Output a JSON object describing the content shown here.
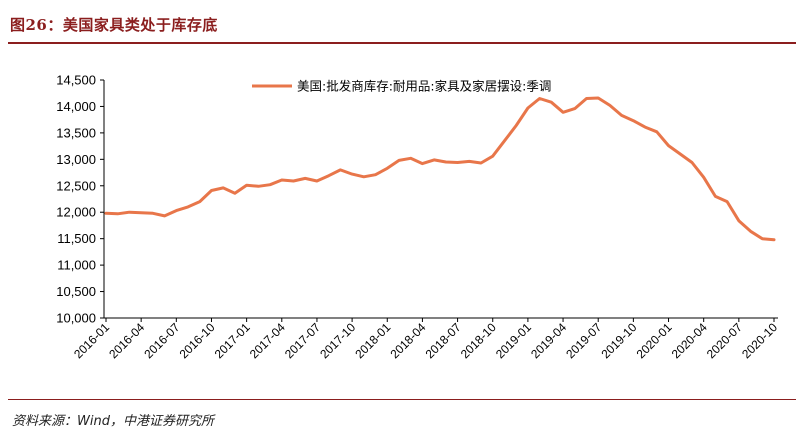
{
  "figure": {
    "title": "图26：美国家具类处于库存底",
    "source": "资料来源：Wind，中港证券研究所"
  },
  "colors": {
    "accent": "#8B1E1E",
    "series": "#E8764A",
    "axis": "#000000"
  },
  "chart_data": {
    "type": "line",
    "title": "",
    "xlabel": "",
    "ylabel": "",
    "ylim": [
      10000,
      14500
    ],
    "yticks": [
      "10,000",
      "10,500",
      "11,000",
      "11,500",
      "12,000",
      "12,500",
      "13,000",
      "13,500",
      "14,000",
      "14,500"
    ],
    "ytick_values": [
      10000,
      10500,
      11000,
      11500,
      12000,
      12500,
      13000,
      13500,
      14000,
      14500
    ],
    "xtick_labels": [
      "2016-01",
      "2016-04",
      "2016-07",
      "2016-10",
      "2017-01",
      "2017-04",
      "2017-07",
      "2017-10",
      "2018-01",
      "2018-04",
      "2018-07",
      "2018-10",
      "2019-01",
      "2019-04",
      "2019-07",
      "2019-10",
      "2020-01",
      "2020-04",
      "2020-07",
      "2020-10"
    ],
    "grid": false,
    "legend_position": "top-center",
    "x": [
      "2016-01",
      "2016-02",
      "2016-03",
      "2016-04",
      "2016-05",
      "2016-06",
      "2016-07",
      "2016-08",
      "2016-09",
      "2016-10",
      "2016-11",
      "2016-12",
      "2017-01",
      "2017-02",
      "2017-03",
      "2017-04",
      "2017-05",
      "2017-06",
      "2017-07",
      "2017-08",
      "2017-09",
      "2017-10",
      "2017-11",
      "2017-12",
      "2018-01",
      "2018-02",
      "2018-03",
      "2018-04",
      "2018-05",
      "2018-06",
      "2018-07",
      "2018-08",
      "2018-09",
      "2018-10",
      "2018-11",
      "2018-12",
      "2019-01",
      "2019-02",
      "2019-03",
      "2019-04",
      "2019-05",
      "2019-06",
      "2019-07",
      "2019-08",
      "2019-09",
      "2019-10",
      "2019-11",
      "2019-12",
      "2020-01",
      "2020-02",
      "2020-03",
      "2020-04",
      "2020-05",
      "2020-06",
      "2020-07",
      "2020-08",
      "2020-09",
      "2020-10"
    ],
    "series": [
      {
        "name": "美国:批发商库存:耐用品:家具及家居摆设:季调",
        "values": [
          11980,
          11970,
          12000,
          11990,
          11980,
          11930,
          12030,
          12100,
          12200,
          12410,
          12460,
          12360,
          12510,
          12490,
          12520,
          12610,
          12590,
          12640,
          12590,
          12690,
          12800,
          12720,
          12670,
          12710,
          12830,
          12980,
          13020,
          12920,
          12990,
          12950,
          12940,
          12960,
          12930,
          13060,
          13350,
          13640,
          13970,
          14150,
          14080,
          13890,
          13960,
          14150,
          14160,
          14020,
          13830,
          13730,
          13610,
          13520,
          13260,
          13100,
          12940,
          12660,
          12300,
          12200,
          11840,
          11640,
          11500,
          11480
        ]
      }
    ]
  }
}
